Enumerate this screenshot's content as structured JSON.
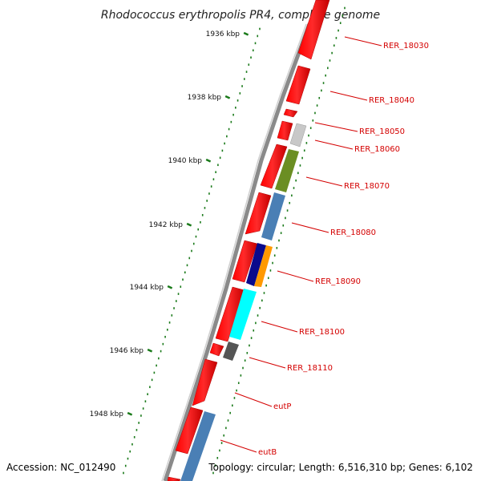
{
  "title": "Rhodococcus erythropolis PR4, complete genome",
  "accession": "Accession: NC_012490",
  "summary": "Topology: circular; Length: 6,516,310 bp; Genes: 6,102",
  "kbp_ticks": [
    "1936 kbp",
    "1938 kbp",
    "1940 kbp",
    "1942 kbp",
    "1944 kbp",
    "1946 kbp",
    "1948 kbp"
  ],
  "gene_labels": [
    "RER_18030",
    "RER_18040",
    "RER_18050",
    "RER_18060",
    "RER_18070",
    "RER_18080",
    "RER_18090",
    "RER_18100",
    "RER_18110",
    "eutP",
    "eutB"
  ],
  "colors": {
    "forward_gene": "#ff0000",
    "label": "#d40000",
    "tick": "#1a7a1a",
    "backbone": "#8a8a8a",
    "gene_gray": "#c8c8c8",
    "gene_olive": "#6b8e23",
    "gene_steelblue": "#4a7fb5",
    "gene_navy": "#0a0a8c",
    "gene_orange": "#ff9900",
    "gene_cyan": "#00ffff",
    "gene_darkgray": "#555555"
  }
}
